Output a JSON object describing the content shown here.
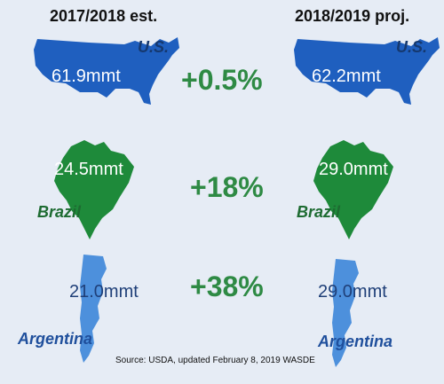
{
  "headers": {
    "left": "2017/2018 est.",
    "right": "2018/2019 proj."
  },
  "colors": {
    "us": "#1f5fbf",
    "brazil": "#1e8a3a",
    "argentina": "#4d90dc",
    "change": "#2e8a44",
    "label_navy": "#15386e",
    "label_green": "#1d6b31",
    "label_arg": "#1f4f9c"
  },
  "rows": [
    {
      "country": "U.S.",
      "left_value": "61.9mmt",
      "right_value": "62.2mmt",
      "change": "+0.5%"
    },
    {
      "country": "Brazil",
      "left_value": "24.5mmt",
      "right_value": "29.0mmt",
      "change": "+18%"
    },
    {
      "country": "Argentina",
      "left_value": "21.0mmt",
      "right_value": "29.0mmt",
      "change": "+38%"
    }
  ],
  "source": "Source: USDA, updated February 8, 2019 WASDE"
}
